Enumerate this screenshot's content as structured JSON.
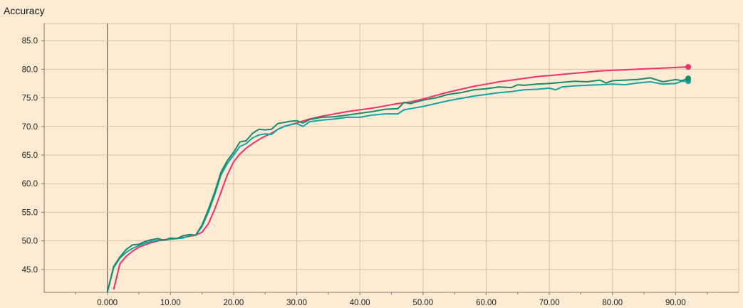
{
  "chart_data": {
    "type": "line",
    "title": "Accuracy",
    "xlabel": "",
    "ylabel": "",
    "xlim": [
      -10,
      100
    ],
    "ylim": [
      41,
      88
    ],
    "grid": true,
    "x_ticks": [
      0,
      10,
      20,
      30,
      40,
      50,
      60,
      70,
      80,
      90
    ],
    "x_tick_labels": [
      "0.000",
      "10.00",
      "20.00",
      "30.00",
      "40.00",
      "50.00",
      "60.00",
      "70.00",
      "80.00",
      "90.00"
    ],
    "y_ticks": [
      45,
      50,
      55,
      60,
      65,
      70,
      75,
      80,
      85
    ],
    "y_tick_labels": [
      "45.0",
      "50.0",
      "55.0",
      "60.0",
      "65.0",
      "70.0",
      "75.0",
      "80.0",
      "85.0"
    ],
    "series": [
      {
        "color": "#f2306a",
        "x": [
          1,
          2,
          3,
          4,
          5,
          6,
          7,
          8,
          10,
          12,
          14,
          15,
          16,
          17,
          18,
          19,
          20,
          21,
          22,
          23,
          24,
          25,
          26,
          27,
          28,
          30,
          32,
          34,
          36,
          38,
          40,
          42,
          44,
          46,
          48,
          50,
          52,
          54,
          56,
          58,
          60,
          62,
          64,
          66,
          68,
          70,
          72,
          74,
          76,
          78,
          80,
          82,
          84,
          86,
          88,
          90,
          92
        ],
        "y": [
          41.5,
          46,
          47.3,
          48.2,
          48.9,
          49.3,
          49.7,
          50.0,
          50.3,
          50.6,
          51.0,
          51.5,
          53.0,
          55.5,
          58.5,
          61.5,
          63.8,
          65.2,
          66.2,
          67.0,
          67.7,
          68.3,
          68.8,
          69.5,
          70.0,
          70.6,
          71.3,
          71.8,
          72.2,
          72.6,
          72.9,
          73.2,
          73.6,
          74.0,
          74.3,
          74.8,
          75.4,
          76.0,
          76.5,
          77.0,
          77.4,
          77.8,
          78.1,
          78.4,
          78.7,
          78.9,
          79.1,
          79.3,
          79.5,
          79.7,
          79.8,
          79.9,
          80.0,
          80.1,
          80.2,
          80.3,
          80.4
        ]
      },
      {
        "color": "#12a4a4",
        "x": [
          0,
          1,
          2,
          3,
          4,
          5,
          6,
          7,
          8,
          9,
          10,
          11,
          12,
          13,
          14,
          15,
          16,
          17,
          18,
          19,
          20,
          21,
          22,
          23,
          24,
          25,
          26,
          27,
          28,
          29,
          30,
          31,
          32,
          34,
          36,
          38,
          40,
          42,
          44,
          46,
          47,
          48,
          50,
          52,
          54,
          56,
          58,
          60,
          62,
          64,
          66,
          68,
          70,
          71,
          72,
          73,
          74,
          76,
          78,
          80,
          82,
          84,
          86,
          88,
          90,
          91,
          92
        ],
        "y": [
          41,
          45.3,
          47.0,
          48.0,
          48.7,
          49.2,
          49.6,
          49.9,
          50.1,
          50.2,
          50.3,
          50.4,
          50.5,
          50.9,
          51.0,
          52.5,
          55.0,
          58.0,
          61.5,
          63.5,
          65.0,
          66.5,
          67.0,
          68.0,
          68.5,
          68.7,
          68.6,
          69.5,
          70.0,
          70.3,
          70.5,
          70.0,
          70.8,
          71.1,
          71.3,
          71.6,
          71.6,
          72.0,
          72.2,
          72.2,
          72.9,
          73.1,
          73.5,
          74.0,
          74.5,
          74.9,
          75.3,
          75.6,
          75.9,
          76.1,
          76.4,
          76.5,
          76.7,
          76.4,
          76.9,
          77.0,
          77.1,
          77.2,
          77.3,
          77.4,
          77.3,
          77.6,
          77.8,
          77.4,
          77.5,
          77.9,
          77.9
        ]
      },
      {
        "color": "#1a8a6a",
        "x": [
          0,
          1,
          2,
          3,
          4,
          5,
          6,
          7,
          8,
          9,
          10,
          11,
          12,
          13,
          14,
          15,
          16,
          17,
          18,
          19,
          20,
          21,
          22,
          23,
          24,
          25,
          26,
          27,
          28,
          29,
          30,
          31,
          32,
          34,
          36,
          38,
          40,
          42,
          44,
          46,
          47,
          48,
          50,
          52,
          54,
          56,
          58,
          60,
          62,
          64,
          65,
          66,
          68,
          70,
          72,
          74,
          76,
          78,
          79,
          80,
          82,
          84,
          86,
          88,
          90,
          91,
          92
        ],
        "y": [
          41,
          45.5,
          47.2,
          48.5,
          49.3,
          49.4,
          49.9,
          50.2,
          50.4,
          50.1,
          50.5,
          50.4,
          50.9,
          51.1,
          51.0,
          52.8,
          55.5,
          58.5,
          62.0,
          64.0,
          65.5,
          67.3,
          67.5,
          68.8,
          69.5,
          69.4,
          69.5,
          70.5,
          70.7,
          70.9,
          71.0,
          70.6,
          71.2,
          71.6,
          71.7,
          72.0,
          72.3,
          72.6,
          73.0,
          73.1,
          74.2,
          74.0,
          74.6,
          75.0,
          75.6,
          75.9,
          76.4,
          76.6,
          76.9,
          76.8,
          77.3,
          77.2,
          77.4,
          77.5,
          77.7,
          77.9,
          77.8,
          78.1,
          77.6,
          78.0,
          78.1,
          78.2,
          78.5,
          77.8,
          78.2,
          78.0,
          78.4
        ]
      }
    ]
  }
}
